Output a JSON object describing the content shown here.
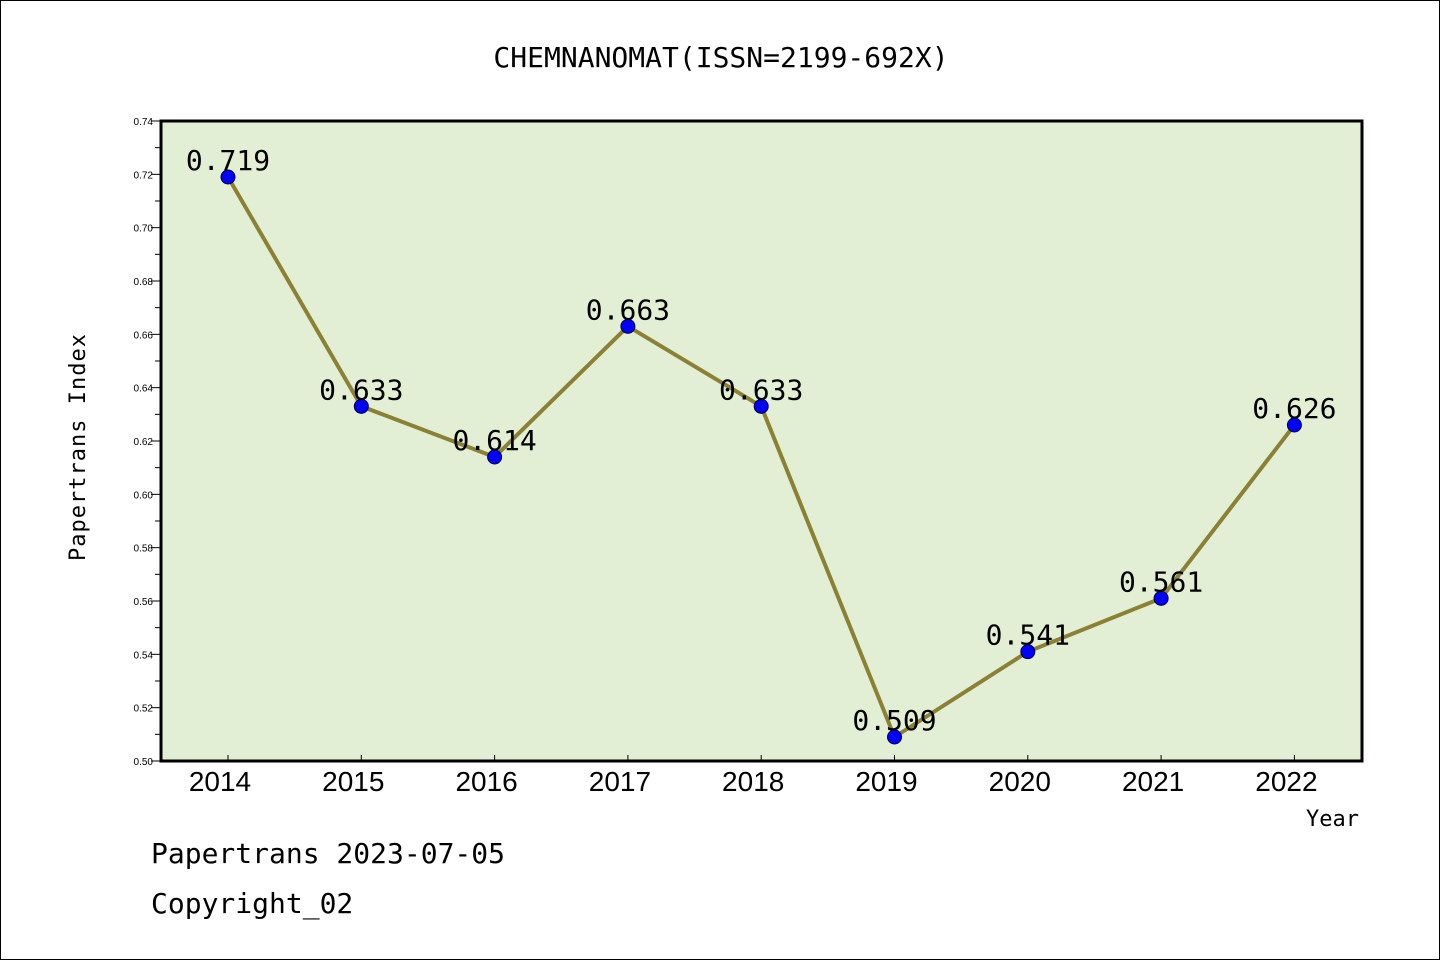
{
  "colors": {
    "plot_background": "#e2efd5",
    "line": "#8b8034",
    "marker": "#0000ff",
    "frame": "#000000"
  },
  "footer": {
    "date_text": "Papertrans 2023-07-05",
    "copyright_text": "Copyright_02"
  },
  "chart_data": {
    "type": "line",
    "title": "CHEMNANOMAT(ISSN=2199-692X)",
    "xlabel": "Year",
    "ylabel": "Papertrans Index",
    "categories": [
      "2014",
      "2015",
      "2016",
      "2017",
      "2018",
      "2019",
      "2020",
      "2021",
      "2022"
    ],
    "series": [
      {
        "values": [
          0.719,
          0.633,
          0.614,
          0.663,
          0.633,
          0.509,
          0.541,
          0.561,
          0.626
        ],
        "labels": [
          "0.719",
          "0.633",
          "0.614",
          "0.663",
          "0.633",
          "0.509",
          "0.541",
          "0.561",
          "0.626"
        ]
      }
    ],
    "ylim": [
      0.5,
      0.74
    ],
    "yticks": [
      "0.50",
      "0.52",
      "0.54",
      "0.56",
      "0.58",
      "0.60",
      "0.62",
      "0.64",
      "0.66",
      "0.68",
      "0.70",
      "0.72",
      "0.74"
    ],
    "grid": false,
    "legend": "none"
  }
}
